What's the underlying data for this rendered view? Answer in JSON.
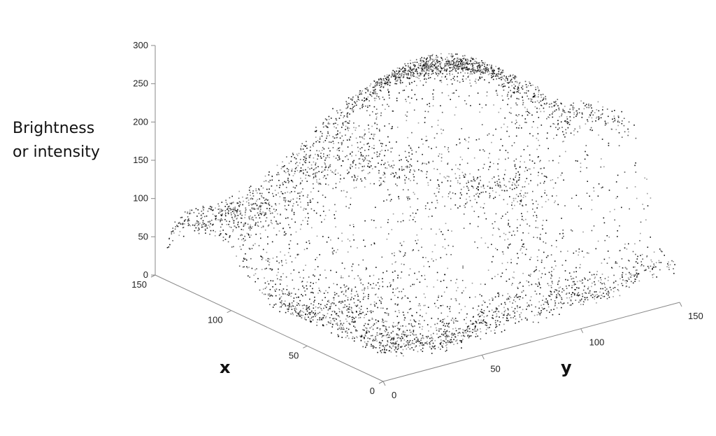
{
  "chart_data": {
    "type": "scatter",
    "title": "",
    "zlabel_lines": [
      "Brightness",
      "or intensity"
    ],
    "xlabel": "x",
    "ylabel": "y",
    "xlim": [
      0,
      150
    ],
    "ylim": [
      0,
      150
    ],
    "zlim": [
      0,
      300
    ],
    "x_ticks": [
      "0",
      "50",
      "100",
      "150"
    ],
    "y_ticks": [
      "0",
      "50",
      "100",
      "150"
    ],
    "z_ticks": [
      "0",
      "50",
      "100",
      "150",
      "200",
      "250",
      "300"
    ],
    "grid": false,
    "legend": "none",
    "series": [
      {
        "style": "3d-surface-point-cloud",
        "colors": [
          "#111111",
          "#555555",
          "#999999"
        ],
        "surface_control_points": [
          {
            "x": 150,
            "y": 0,
            "z": 40
          },
          {
            "x": 140,
            "y": 10,
            "z": 75
          },
          {
            "x": 120,
            "y": 15,
            "z": 90
          },
          {
            "x": 75,
            "y": 30,
            "z": 20
          },
          {
            "x": 30,
            "y": 55,
            "z": 5
          },
          {
            "x": 10,
            "y": 70,
            "z": 30
          },
          {
            "x": 90,
            "y": 65,
            "z": 155
          },
          {
            "x": 55,
            "y": 95,
            "z": 140
          },
          {
            "x": 90,
            "y": 100,
            "z": 255
          },
          {
            "x": 40,
            "y": 150,
            "z": 210
          },
          {
            "x": 0,
            "y": 140,
            "z": 45
          },
          {
            "x": 20,
            "y": 120,
            "z": 25
          }
        ]
      }
    ]
  }
}
